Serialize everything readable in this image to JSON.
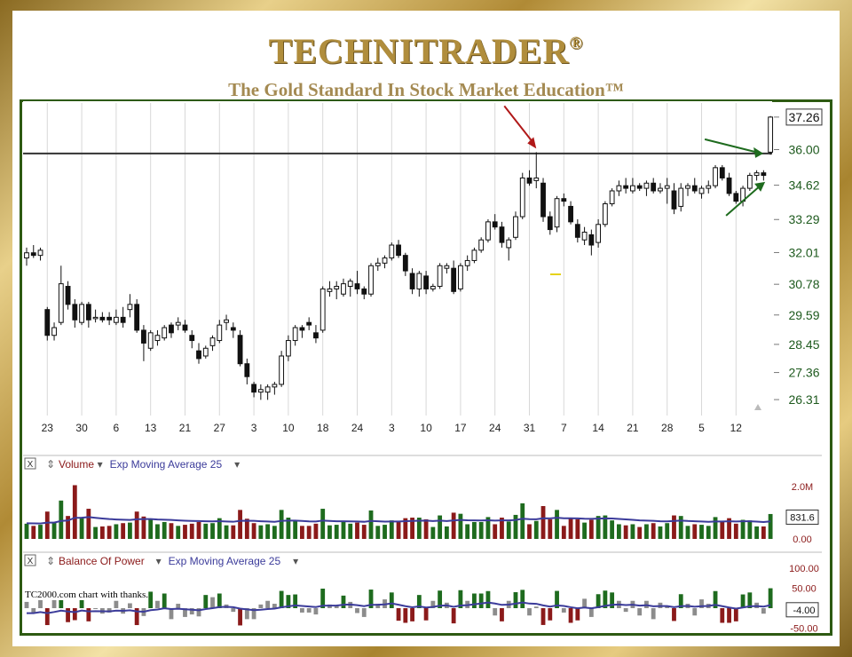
{
  "header": {
    "brand": "TECHNITRADER",
    "brand_mark": "®",
    "tagline": "The Gold Standard In Stock Market Education™"
  },
  "credit": "TC2000.com  chart with thanks.",
  "colors": {
    "up_volume": "#1e6b1e",
    "down_volume": "#8b1a1a",
    "ema_line": "#3b3b9a",
    "red_arrow": "#b01818",
    "green_arrow": "#1e6b1e",
    "price_axis_text": "#1e5a1e",
    "lower_axis_text": "#8b1a1a"
  },
  "chart_data": [
    {
      "type": "candlestick",
      "price_labels": [
        "37.26",
        "36.00",
        "34.62",
        "33.29",
        "32.01",
        "30.78",
        "29.59",
        "28.45",
        "27.36",
        "26.31"
      ],
      "price_label_values": [
        37.26,
        36.0,
        34.62,
        33.29,
        32.01,
        30.78,
        29.59,
        28.45,
        27.36,
        26.31
      ],
      "last_price_label": "37.26",
      "date_labels": [
        "23",
        "30",
        "6",
        "13",
        "21",
        "27",
        "3",
        "10",
        "18",
        "24",
        "3",
        "10",
        "17",
        "24",
        "31",
        "7",
        "14",
        "21",
        "28",
        "5",
        "12"
      ],
      "date_label_bar_index": [
        3,
        8,
        13,
        18,
        23,
        28,
        33,
        38,
        43,
        48,
        53,
        58,
        63,
        68,
        73,
        78,
        83,
        88,
        93,
        98,
        103
      ],
      "resistance_level": 35.85,
      "candles": [
        [
          31.8,
          32.2,
          31.5,
          32.0
        ],
        [
          32.0,
          32.3,
          31.8,
          31.9
        ],
        [
          31.9,
          32.2,
          31.7,
          32.1
        ],
        [
          29.8,
          29.9,
          28.6,
          28.8
        ],
        [
          28.8,
          29.3,
          28.6,
          29.1
        ],
        [
          29.3,
          31.5,
          29.2,
          30.8
        ],
        [
          30.7,
          30.9,
          29.8,
          30.0
        ],
        [
          30.0,
          30.2,
          29.1,
          29.4
        ],
        [
          29.3,
          30.1,
          29.2,
          30.0
        ],
        [
          30.0,
          30.1,
          29.1,
          29.4
        ],
        [
          29.5,
          29.8,
          29.3,
          29.5
        ],
        [
          29.5,
          29.7,
          29.3,
          29.4
        ],
        [
          29.5,
          29.7,
          29.2,
          29.4
        ],
        [
          29.3,
          29.8,
          29.2,
          29.5
        ],
        [
          29.5,
          29.9,
          29.1,
          29.3
        ],
        [
          29.8,
          30.4,
          29.5,
          30.0
        ],
        [
          30.0,
          30.2,
          28.9,
          29.0
        ],
        [
          29.0,
          29.2,
          27.8,
          28.5
        ],
        [
          28.3,
          29.0,
          28.2,
          28.9
        ],
        [
          28.6,
          29.0,
          28.4,
          28.8
        ],
        [
          28.7,
          29.2,
          28.6,
          29.1
        ],
        [
          29.2,
          29.3,
          28.7,
          28.9
        ],
        [
          29.2,
          29.5,
          29.0,
          29.3
        ],
        [
          29.2,
          29.4,
          28.9,
          29.0
        ],
        [
          28.8,
          29.0,
          28.3,
          28.6
        ],
        [
          28.2,
          28.5,
          27.7,
          27.9
        ],
        [
          28.0,
          28.4,
          27.9,
          28.3
        ],
        [
          28.4,
          28.8,
          28.2,
          28.7
        ],
        [
          28.6,
          29.4,
          28.5,
          29.2
        ],
        [
          29.3,
          29.6,
          29.0,
          29.4
        ],
        [
          29.1,
          29.3,
          28.7,
          29.0
        ],
        [
          28.8,
          29.0,
          27.6,
          27.7
        ],
        [
          27.7,
          27.9,
          26.9,
          27.2
        ],
        [
          26.9,
          27.0,
          26.4,
          26.6
        ],
        [
          26.6,
          26.9,
          26.3,
          26.7
        ],
        [
          26.6,
          26.9,
          26.3,
          26.8
        ],
        [
          26.8,
          27.0,
          26.5,
          26.9
        ],
        [
          26.9,
          28.2,
          26.8,
          28.0
        ],
        [
          28.0,
          28.8,
          27.8,
          28.6
        ],
        [
          28.6,
          29.2,
          28.4,
          29.1
        ],
        [
          29.1,
          29.2,
          28.7,
          29.0
        ],
        [
          29.3,
          29.5,
          29.0,
          29.2
        ],
        [
          28.9,
          29.2,
          28.5,
          28.7
        ],
        [
          29.0,
          30.7,
          28.9,
          30.6
        ],
        [
          30.5,
          30.9,
          30.3,
          30.6
        ],
        [
          30.6,
          30.9,
          30.2,
          30.7
        ],
        [
          30.4,
          31.0,
          30.3,
          30.8
        ],
        [
          30.7,
          31.0,
          30.3,
          30.9
        ],
        [
          30.8,
          31.3,
          30.4,
          30.6
        ],
        [
          30.6,
          30.7,
          30.2,
          30.4
        ],
        [
          30.4,
          31.6,
          30.3,
          31.5
        ],
        [
          31.5,
          31.8,
          31.3,
          31.6
        ],
        [
          31.6,
          31.9,
          31.4,
          31.8
        ],
        [
          31.8,
          32.4,
          31.7,
          32.3
        ],
        [
          32.3,
          32.5,
          31.8,
          31.9
        ],
        [
          31.9,
          32.0,
          31.1,
          31.3
        ],
        [
          31.2,
          31.4,
          30.4,
          30.6
        ],
        [
          30.6,
          31.3,
          30.3,
          31.2
        ],
        [
          31.1,
          31.3,
          30.4,
          30.6
        ],
        [
          30.6,
          30.8,
          30.5,
          30.7
        ],
        [
          30.7,
          31.6,
          30.6,
          31.5
        ],
        [
          31.4,
          31.6,
          31.2,
          31.5
        ],
        [
          31.4,
          31.7,
          30.4,
          30.5
        ],
        [
          30.6,
          31.6,
          30.5,
          31.5
        ],
        [
          31.5,
          31.9,
          31.3,
          31.7
        ],
        [
          31.7,
          32.2,
          31.6,
          32.1
        ],
        [
          32.1,
          32.6,
          32.0,
          32.5
        ],
        [
          32.5,
          33.3,
          32.4,
          33.2
        ],
        [
          33.2,
          33.5,
          32.9,
          33.0
        ],
        [
          33.0,
          33.2,
          32.2,
          32.4
        ],
        [
          32.2,
          32.6,
          31.7,
          32.5
        ],
        [
          32.6,
          33.6,
          32.5,
          33.4
        ],
        [
          33.4,
          35.1,
          33.3,
          34.9
        ],
        [
          34.9,
          35.2,
          34.6,
          34.7
        ],
        [
          34.8,
          35.9,
          34.5,
          34.9
        ],
        [
          34.7,
          34.9,
          33.2,
          33.4
        ],
        [
          33.4,
          33.6,
          32.7,
          32.9
        ],
        [
          33.0,
          34.2,
          32.8,
          34.1
        ],
        [
          34.1,
          34.3,
          33.8,
          34.0
        ],
        [
          33.8,
          34.0,
          33.1,
          33.2
        ],
        [
          33.1,
          33.3,
          32.4,
          32.6
        ],
        [
          32.5,
          33.0,
          32.3,
          32.8
        ],
        [
          32.7,
          32.9,
          31.9,
          32.3
        ],
        [
          32.4,
          33.3,
          32.2,
          33.1
        ],
        [
          33.1,
          34.0,
          33.0,
          33.9
        ],
        [
          33.9,
          34.5,
          33.8,
          34.4
        ],
        [
          34.4,
          34.8,
          34.2,
          34.6
        ],
        [
          34.6,
          34.9,
          34.3,
          34.5
        ],
        [
          34.4,
          34.9,
          34.3,
          34.6
        ],
        [
          34.6,
          34.7,
          34.4,
          34.5
        ],
        [
          34.5,
          34.8,
          34.2,
          34.7
        ],
        [
          34.7,
          34.9,
          34.3,
          34.4
        ],
        [
          34.4,
          34.7,
          34.3,
          34.5
        ],
        [
          34.5,
          34.9,
          33.9,
          34.6
        ],
        [
          34.4,
          34.7,
          33.5,
          33.7
        ],
        [
          33.8,
          34.7,
          33.6,
          34.5
        ],
        [
          34.5,
          34.7,
          34.2,
          34.6
        ],
        [
          34.6,
          34.9,
          34.3,
          34.4
        ],
        [
          34.3,
          34.6,
          34.1,
          34.5
        ],
        [
          34.5,
          34.8,
          34.3,
          34.6
        ],
        [
          34.6,
          35.4,
          34.5,
          35.3
        ],
        [
          35.3,
          35.4,
          34.8,
          34.9
        ],
        [
          34.9,
          35.1,
          34.2,
          34.3
        ],
        [
          34.3,
          34.4,
          33.9,
          34.0
        ],
        [
          34.0,
          34.6,
          33.8,
          34.5
        ],
        [
          34.5,
          35.1,
          34.4,
          35.0
        ],
        [
          35.0,
          35.2,
          34.8,
          35.1
        ],
        [
          35.1,
          35.2,
          34.8,
          35.0
        ],
        [
          35.9,
          37.3,
          35.8,
          37.26
        ]
      ]
    },
    {
      "type": "bar",
      "indicator": "Volume",
      "overlay": "Exp Moving Average 25",
      "axis_labels": [
        "2.0M",
        "831.6",
        "0.00"
      ],
      "axis_values": [
        2.0,
        0.8316,
        0.0
      ],
      "current_label": "831.6"
    },
    {
      "type": "bar",
      "indicator": "Balance Of Power",
      "overlay": "Exp Moving Average 25",
      "axis_labels": [
        "100.00",
        "50.00",
        "-4.00",
        "-50.00"
      ],
      "axis_values": [
        100,
        50,
        -4,
        -50
      ],
      "current_label": "-4.00"
    }
  ],
  "panels": {
    "volume": {
      "close_x": "X",
      "drag_glyph": "⇕",
      "name": "Volume",
      "overlay": "Exp Moving Average 25",
      "dropdown": "▾"
    },
    "bop": {
      "close_x": "X",
      "drag_glyph": "⇕",
      "name": "Balance Of Power",
      "overlay": "Exp Moving Average 25",
      "dropdown": "▾"
    }
  }
}
